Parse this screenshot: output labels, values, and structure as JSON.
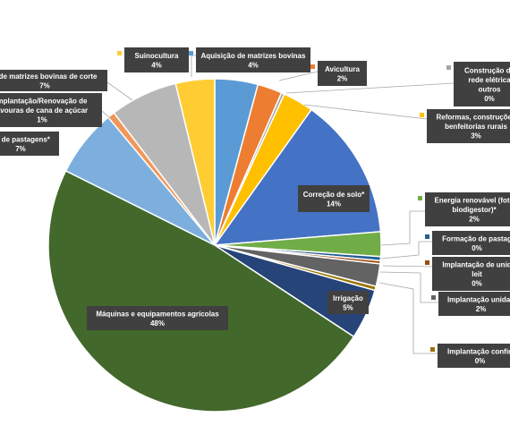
{
  "chart_data": {
    "type": "pie",
    "title": "",
    "slices": [
      {
        "label": "Aquisição de matrizes bovinas",
        "pct_label": "4%",
        "value": 4.2,
        "color": "#5b9bd5"
      },
      {
        "label": "Avicultura",
        "pct_label": "2%",
        "value": 2.4,
        "color": "#ed7d31"
      },
      {
        "label": "Construção de rede elétrica e outros",
        "pct_label": "0%",
        "value": 0.3,
        "color": "#a5a5a5"
      },
      {
        "label": "Reformas, construções, benfeitorias rurais",
        "pct_label": "3%",
        "value": 3.0,
        "color": "#ffc000"
      },
      {
        "label": "Correção de solo*",
        "pct_label": "14%",
        "value": 13.9,
        "color": "#4472c4"
      },
      {
        "label": "Energia renovável (fotovoltaica, biodigestor)*",
        "pct_label": "2%",
        "value": 2.4,
        "color": "#70ad47"
      },
      {
        "label": "Formação de pastagens",
        "pct_label": "0%",
        "value": 0.4,
        "color": "#255e91"
      },
      {
        "label": "Implantação de unidade de leite",
        "pct_label": "0%",
        "value": 0.3,
        "color": "#9e480e"
      },
      {
        "label": "Implantação unidade",
        "pct_label": "2%",
        "value": 2.2,
        "color": "#636363"
      },
      {
        "label": "Implantação confinamento",
        "pct_label": "0%",
        "value": 0.4,
        "color": "#997300"
      },
      {
        "label": "Irrigação",
        "pct_label": "5%",
        "value": 4.9,
        "color": "#264478"
      },
      {
        "label": "Máquinas e equipamentos agrícolas",
        "pct_label": "48%",
        "value": 48.3,
        "color": "#43682b"
      },
      {
        "label": "Recuperação/formação de pastagens*",
        "pct_label": "7%",
        "value": 6.6,
        "color": "#7cafdd"
      },
      {
        "label": "Implantação/Renovação de lavouras de cana de açúcar",
        "pct_label": "1%",
        "value": 0.7,
        "color": "#f1975a"
      },
      {
        "label": "Aquisição de matrizes bovinas de corte",
        "pct_label": "7%",
        "value": 6.6,
        "color": "#b7b7b7"
      },
      {
        "label": "Suinocultura",
        "pct_label": "4%",
        "value": 3.8,
        "color": "#ffcd33"
      }
    ]
  },
  "labels": [
    {
      "lines": [
        "Suinocultura",
        "4%"
      ],
      "color": "#ffcd33"
    },
    {
      "lines": [
        "Aquisição de matrizes bovinas",
        "4%"
      ],
      "color": "#5b9bd5"
    },
    {
      "lines": [
        "Avicultura",
        "2%"
      ],
      "color": "#ed7d31"
    },
    {
      "lines": [
        "Construção de",
        "rede elétrica",
        "outros",
        "0%"
      ],
      "color": "#a5a5a5"
    },
    {
      "lines": [
        "Reformas, construções",
        "benfeitorias rurais",
        "3%"
      ],
      "color": "#ffc000"
    },
    {
      "lines": [
        "o de matrizes bovinas de corte",
        "7%"
      ],
      "color": null
    },
    {
      "lines": [
        "mplantação/Renovação de",
        "avouras de cana de açúcar",
        "1%"
      ],
      "color": null
    },
    {
      "lines": [
        "na de pastagens*",
        "7%"
      ],
      "color": null
    },
    {
      "lines": [
        "Correção de solo*",
        "14%"
      ],
      "color": null
    },
    {
      "lines": [
        "Energia renovável (foto",
        "biodigestor)*",
        "2%"
      ],
      "color": "#70ad47"
    },
    {
      "lines": [
        "Formação de pastag",
        "0%"
      ],
      "color": "#255e91"
    },
    {
      "lines": [
        "Implantação de unid",
        "leit",
        "0%"
      ],
      "color": "#9e480e"
    },
    {
      "lines": [
        "Implantação unidad",
        "2%"
      ],
      "color": "#636363"
    },
    {
      "lines": [
        "Irrigação",
        "5%"
      ],
      "color": null
    },
    {
      "lines": [
        "Máquinas e equipamentos agrícolas",
        "48%"
      ],
      "color": null
    },
    {
      "lines": [
        "Implantação confin",
        "0%"
      ],
      "color": "#997300"
    }
  ]
}
